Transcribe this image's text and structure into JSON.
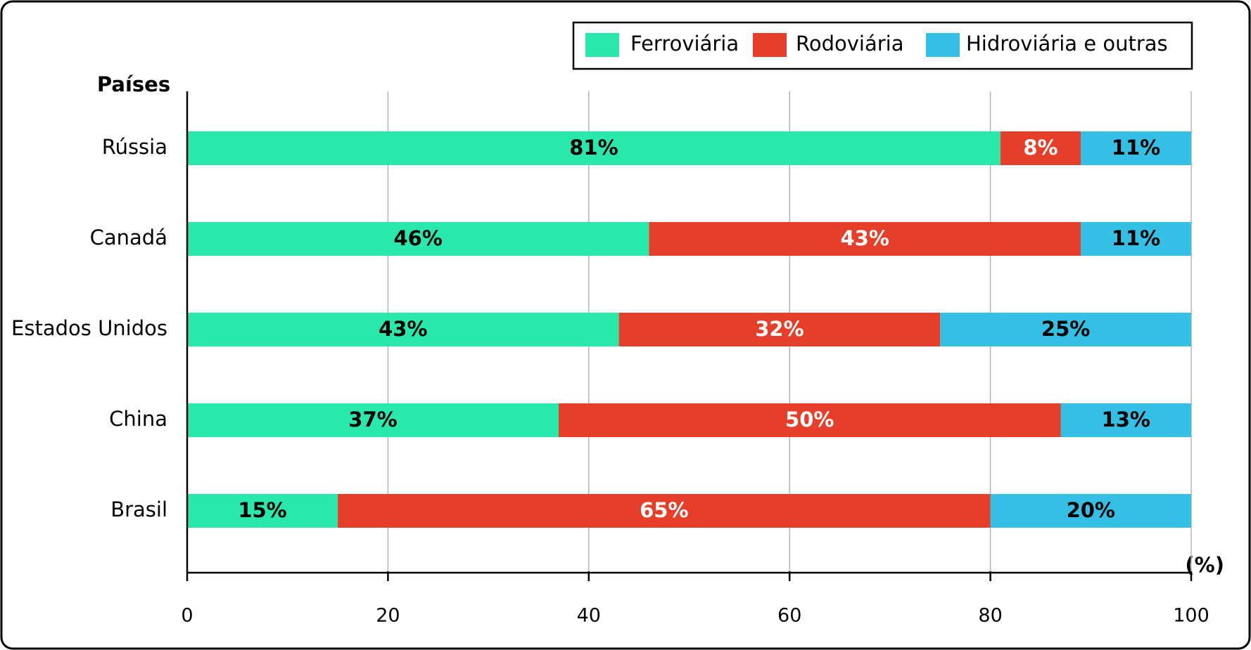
{
  "chart_data": {
    "type": "hbar-stacked",
    "y_axis_title": "Países",
    "x_axis_label": "(%)",
    "categories": [
      "Rússia",
      "Canadá",
      "Estados Unidos",
      "China",
      "Brasil"
    ],
    "series": [
      {
        "name": "Ferroviária",
        "color": "#28e8ac",
        "label_color": "#000000",
        "values": [
          81,
          46,
          43,
          37,
          15
        ],
        "value_labels": [
          "81%",
          "46%",
          "43%",
          "37%",
          "15%"
        ]
      },
      {
        "name": "Rodoviária",
        "color": "#e63e28",
        "label_color": "#ffffff",
        "values": [
          8,
          43,
          32,
          50,
          65
        ],
        "value_labels": [
          "8%",
          "43%",
          "32%",
          "50%",
          "65%"
        ]
      },
      {
        "name": "Hidroviária e outras",
        "color": "#33c0e4",
        "label_color": "#000000",
        "values": [
          11,
          11,
          25,
          13,
          20
        ],
        "value_labels": [
          "11%",
          "11%",
          "25%",
          "13%",
          "20%"
        ]
      }
    ],
    "xlim": [
      0,
      100
    ],
    "xticks": [
      0,
      20,
      40,
      60,
      80,
      100
    ],
    "grid": true,
    "legend": "top-right"
  }
}
